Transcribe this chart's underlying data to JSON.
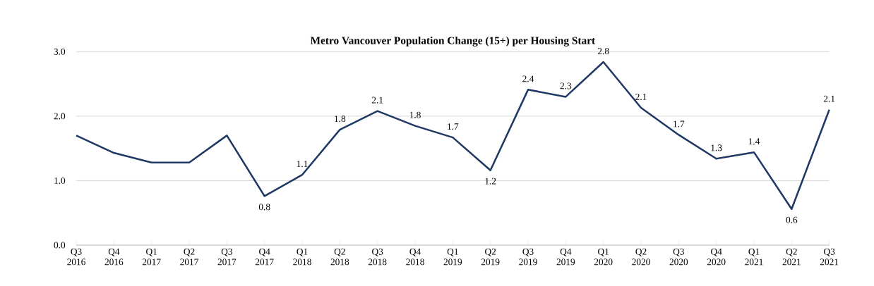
{
  "chart_data": {
    "type": "line",
    "title": "Metro Vancouver Population Change (15+) per Housing Start",
    "categories": [
      "Q3 2016",
      "Q4 2016",
      "Q1 2017",
      "Q2 2017",
      "Q3 2017",
      "Q4 2017",
      "Q1 2018",
      "Q2 2018",
      "Q3 2018",
      "Q4 2018",
      "Q1 2019",
      "Q2 2019",
      "Q3 2019",
      "Q4 2019",
      "Q1 2020",
      "Q2 2020",
      "Q3 2020",
      "Q4 2020",
      "Q1 2021",
      "Q2 2021",
      "Q3 2021"
    ],
    "values": [
      1.7,
      1.43,
      1.28,
      1.28,
      1.7,
      0.76,
      1.09,
      1.79,
      2.08,
      1.85,
      1.67,
      1.16,
      2.41,
      2.3,
      2.84,
      2.13,
      1.71,
      1.34,
      1.44,
      0.56,
      2.1
    ],
    "value_labels": [
      null,
      null,
      null,
      null,
      null,
      "0.8",
      "1.1",
      "1.8",
      "2.1",
      "1.8",
      "1.7",
      "1.2",
      "2.4",
      "2.3",
      "2.8",
      "2.1",
      "1.7",
      "1.3",
      "1.4",
      "0.6",
      "2.1"
    ],
    "color": "#203864",
    "ylim": [
      0,
      3
    ],
    "yticks": [
      {
        "value": 0,
        "label": "0.0"
      },
      {
        "value": 1,
        "label": "1.0"
      },
      {
        "value": 2,
        "label": "2.0"
      },
      {
        "value": 3,
        "label": "3.0"
      }
    ],
    "grid": "y",
    "marker": "none",
    "line_style": "solid"
  }
}
